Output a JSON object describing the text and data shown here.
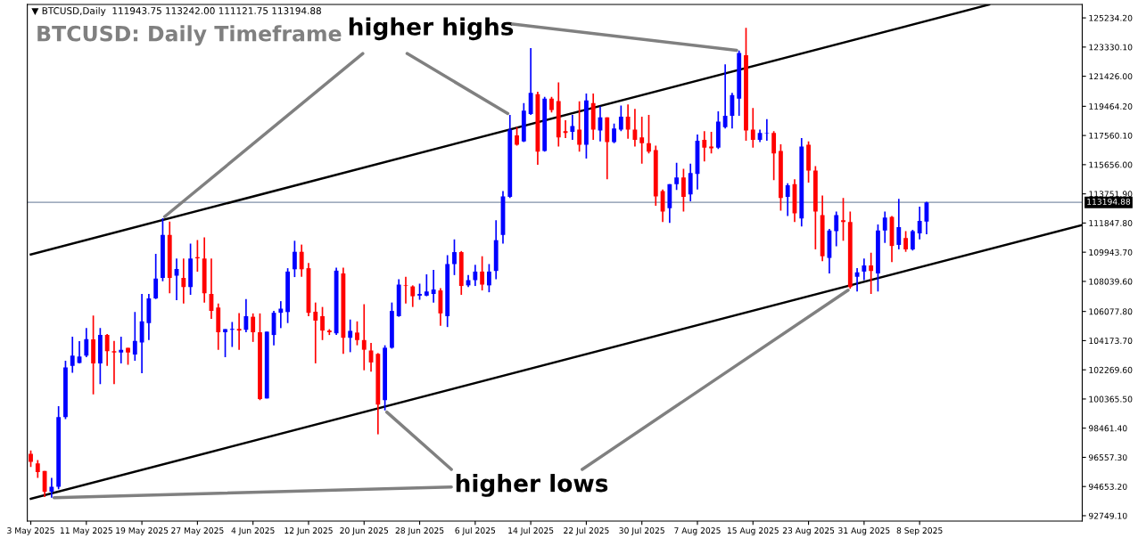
{
  "chart_data": {
    "type": "candlestick",
    "title": "BTCUSD: Daily Timeframe",
    "subtitle": "▼ BTCUSD,Daily  111943.75 113242.00 111121.75 113194.88",
    "annotations": [
      {
        "text": "higher highs",
        "x": "2025-05-22",
        "y": 112160
      },
      {
        "text": "higher lows",
        "x": "2025-05-06",
        "y": 93920
      }
    ],
    "x": [
      "2025-05-03",
      "2025-05-04",
      "2025-05-05",
      "2025-05-06",
      "2025-05-07",
      "2025-05-08",
      "2025-05-09",
      "2025-05-10",
      "2025-05-11",
      "2025-05-12",
      "2025-05-13",
      "2025-05-14",
      "2025-05-15",
      "2025-05-16",
      "2025-05-17",
      "2025-05-18",
      "2025-05-19",
      "2025-05-20",
      "2025-05-21",
      "2025-05-22",
      "2025-05-23",
      "2025-05-24",
      "2025-05-25",
      "2025-05-26",
      "2025-05-27",
      "2025-05-28",
      "2025-05-29",
      "2025-05-30",
      "2025-05-31",
      "2025-06-01",
      "2025-06-02",
      "2025-06-03",
      "2025-06-04",
      "2025-06-05",
      "2025-06-06",
      "2025-06-07",
      "2025-06-08",
      "2025-06-09",
      "2025-06-10",
      "2025-06-11",
      "2025-06-12",
      "2025-06-13",
      "2025-06-14",
      "2025-06-15",
      "2025-06-16",
      "2025-06-17",
      "2025-06-18",
      "2025-06-19",
      "2025-06-20",
      "2025-06-21",
      "2025-06-22",
      "2025-06-23",
      "2025-06-24",
      "2025-06-25",
      "2025-06-26",
      "2025-06-27",
      "2025-06-28",
      "2025-06-29",
      "2025-06-30",
      "2025-07-01",
      "2025-07-02",
      "2025-07-03",
      "2025-07-04",
      "2025-07-05",
      "2025-07-06",
      "2025-07-07",
      "2025-07-08",
      "2025-07-09",
      "2025-07-10",
      "2025-07-11",
      "2025-07-12",
      "2025-07-13",
      "2025-07-14",
      "2025-07-15",
      "2025-07-16",
      "2025-07-17",
      "2025-07-18",
      "2025-07-19",
      "2025-07-20",
      "2025-07-21",
      "2025-07-22",
      "2025-07-23",
      "2025-07-24",
      "2025-07-25",
      "2025-07-26",
      "2025-07-27",
      "2025-07-28",
      "2025-07-29",
      "2025-07-30",
      "2025-07-31",
      "2025-08-01",
      "2025-08-02",
      "2025-08-03",
      "2025-08-04",
      "2025-08-05",
      "2025-08-06",
      "2025-08-07",
      "2025-08-08",
      "2025-08-09",
      "2025-08-10",
      "2025-08-11",
      "2025-08-12",
      "2025-08-13",
      "2025-08-14",
      "2025-08-15",
      "2025-08-16",
      "2025-08-17",
      "2025-08-18",
      "2025-08-19",
      "2025-08-20",
      "2025-08-21",
      "2025-08-22",
      "2025-08-23",
      "2025-08-24",
      "2025-08-25",
      "2025-08-26",
      "2025-08-27",
      "2025-08-28",
      "2025-08-29",
      "2025-08-30",
      "2025-08-31",
      "2025-09-01",
      "2025-09-02",
      "2025-09-03",
      "2025-09-04",
      "2025-09-05",
      "2025-09-06",
      "2025-09-07",
      "2025-09-08",
      "2025-09-09"
    ],
    "ohlc": [
      [
        96780,
        97010,
        95930,
        96270
      ],
      [
        96160,
        96380,
        95220,
        95600
      ],
      [
        95670,
        95670,
        93970,
        94320
      ],
      [
        94320,
        95220,
        93920,
        94640
      ],
      [
        94640,
        99890,
        94480,
        99180
      ],
      [
        99180,
        102860,
        99060,
        102420
      ],
      [
        102530,
        104430,
        102080,
        103200
      ],
      [
        102710,
        104140,
        102680,
        103130
      ],
      [
        103200,
        104990,
        103090,
        104270
      ],
      [
        104250,
        105810,
        100670,
        102690
      ],
      [
        102690,
        104990,
        101340,
        104540
      ],
      [
        104540,
        104610,
        102530,
        103490
      ],
      [
        103490,
        104160,
        101340,
        103400
      ],
      [
        103400,
        104430,
        102690,
        103580
      ],
      [
        103710,
        103710,
        102600,
        103400
      ],
      [
        103270,
        106040,
        102860,
        104160
      ],
      [
        104050,
        107220,
        102040,
        105430
      ],
      [
        105320,
        107220,
        104210,
        106930
      ],
      [
        106930,
        109840,
        106890,
        108230
      ],
      [
        108270,
        112160,
        108050,
        111070
      ],
      [
        111070,
        111940,
        107270,
        108270
      ],
      [
        108410,
        109530,
        106820,
        108850
      ],
      [
        108270,
        109530,
        106600,
        107670
      ],
      [
        107670,
        110510,
        107160,
        109530
      ],
      [
        109620,
        110730,
        108680,
        109550
      ],
      [
        109530,
        110910,
        106660,
        107270
      ],
      [
        107220,
        109530,
        105590,
        106110
      ],
      [
        106330,
        106600,
        103580,
        104720
      ],
      [
        104720,
        104920,
        103090,
        104920
      ],
      [
        104880,
        105390,
        103760,
        104940
      ],
      [
        104940,
        105970,
        103580,
        104830
      ],
      [
        104880,
        106890,
        104720,
        105770
      ],
      [
        105730,
        105950,
        104090,
        104720
      ],
      [
        104720,
        105950,
        100290,
        100360
      ],
      [
        100400,
        104760,
        100400,
        104760
      ],
      [
        104540,
        106110,
        103870,
        105990
      ],
      [
        105990,
        106750,
        104990,
        106260
      ],
      [
        106040,
        108900,
        105320,
        108680
      ],
      [
        108830,
        110690,
        108320,
        109970
      ],
      [
        109970,
        110440,
        108340,
        108830
      ],
      [
        108900,
        109240,
        105770,
        105990
      ],
      [
        106060,
        106660,
        102690,
        105480
      ],
      [
        105770,
        106370,
        104210,
        104830
      ],
      [
        104830,
        104920,
        104540,
        104720
      ],
      [
        104650,
        108940,
        104540,
        108740
      ],
      [
        108560,
        108940,
        103310,
        104360
      ],
      [
        104360,
        105550,
        103420,
        104810
      ],
      [
        104700,
        105430,
        103870,
        104210
      ],
      [
        104210,
        106550,
        102240,
        103580
      ],
      [
        103530,
        104030,
        102150,
        102750
      ],
      [
        103310,
        103360,
        98060,
        100000
      ],
      [
        100290,
        103870,
        99620,
        103710
      ],
      [
        103710,
        106660,
        103650,
        106110
      ],
      [
        105770,
        108180,
        105730,
        107830
      ],
      [
        107780,
        108340,
        106600,
        107740
      ],
      [
        107710,
        107780,
        106370,
        107070
      ],
      [
        107110,
        107890,
        106840,
        107220
      ],
      [
        107110,
        108500,
        107070,
        107380
      ],
      [
        107220,
        108790,
        106660,
        107510
      ],
      [
        107450,
        107600,
        105140,
        105950
      ],
      [
        105770,
        109750,
        105060,
        109170
      ],
      [
        109170,
        110780,
        108450,
        109950
      ],
      [
        109950,
        110020,
        107160,
        107740
      ],
      [
        107780,
        108450,
        107670,
        108120
      ],
      [
        108120,
        109120,
        107740,
        108680
      ],
      [
        108680,
        109680,
        107450,
        107830
      ],
      [
        107780,
        109170,
        107330,
        108680
      ],
      [
        108720,
        112030,
        108180,
        110730
      ],
      [
        111070,
        113930,
        110510,
        113590
      ],
      [
        113550,
        118910,
        113480,
        117950
      ],
      [
        117570,
        118110,
        116900,
        116950
      ],
      [
        117170,
        119670,
        117130,
        119180
      ],
      [
        118960,
        123260,
        118910,
        120340
      ],
      [
        120260,
        120410,
        115650,
        116500
      ],
      [
        116550,
        120080,
        116500,
        119970
      ],
      [
        119970,
        120080,
        119070,
        119230
      ],
      [
        119810,
        121020,
        116840,
        117440
      ],
      [
        117840,
        118560,
        117390,
        117730
      ],
      [
        117800,
        118910,
        117280,
        118180
      ],
      [
        117950,
        119790,
        116500,
        116950
      ],
      [
        116950,
        120300,
        116050,
        119850
      ],
      [
        119670,
        120300,
        117280,
        117950
      ],
      [
        117890,
        119450,
        117170,
        118740
      ],
      [
        118740,
        118740,
        114710,
        117130
      ],
      [
        117130,
        118330,
        117060,
        118020
      ],
      [
        117950,
        119520,
        117840,
        118780
      ],
      [
        118780,
        119590,
        117350,
        117950
      ],
      [
        117950,
        119290,
        116840,
        117280
      ],
      [
        117440,
        118780,
        115720,
        117060
      ],
      [
        117060,
        118910,
        116390,
        116500
      ],
      [
        116610,
        116900,
        112970,
        113590
      ],
      [
        113930,
        114040,
        111920,
        112590
      ],
      [
        112810,
        114380,
        111850,
        114380
      ],
      [
        114380,
        115780,
        114000,
        114820
      ],
      [
        114820,
        115380,
        112590,
        113550
      ],
      [
        113710,
        115720,
        113260,
        115110
      ],
      [
        115050,
        117620,
        114040,
        117220
      ],
      [
        117280,
        117840,
        115870,
        116770
      ],
      [
        116840,
        117800,
        116390,
        116720
      ],
      [
        116770,
        119140,
        116680,
        118470
      ],
      [
        118110,
        122200,
        118020,
        118850
      ],
      [
        118850,
        120340,
        118020,
        120190
      ],
      [
        119970,
        123100,
        118850,
        122940
      ],
      [
        122800,
        124590,
        117220,
        117890
      ],
      [
        117950,
        119360,
        116770,
        117280
      ],
      [
        117280,
        117950,
        117130,
        117730
      ],
      [
        117690,
        118620,
        117220,
        117730
      ],
      [
        117730,
        117840,
        114640,
        116390
      ],
      [
        116550,
        116990,
        112660,
        113480
      ],
      [
        113550,
        114440,
        112300,
        114310
      ],
      [
        114380,
        114710,
        111920,
        112480
      ],
      [
        112140,
        117390,
        111630,
        116840
      ],
      [
        116950,
        117170,
        114490,
        115270
      ],
      [
        115270,
        115560,
        110130,
        112590
      ],
      [
        112370,
        113640,
        109350,
        109680
      ],
      [
        109570,
        111470,
        108560,
        111360
      ],
      [
        111320,
        112590,
        110330,
        112370
      ],
      [
        112030,
        113480,
        110690,
        111920
      ],
      [
        111920,
        112590,
        107560,
        107670
      ],
      [
        108340,
        108900,
        107380,
        108630
      ],
      [
        108680,
        109530,
        108120,
        109080
      ],
      [
        109080,
        109910,
        107220,
        108720
      ],
      [
        108560,
        111760,
        107380,
        111360
      ],
      [
        111360,
        112590,
        110550,
        112210
      ],
      [
        112250,
        112300,
        109300,
        110350
      ],
      [
        110420,
        113420,
        110130,
        111580
      ],
      [
        110870,
        111320,
        109970,
        110130
      ],
      [
        110130,
        111400,
        110060,
        111320
      ],
      [
        111180,
        112920,
        110780,
        111990
      ],
      [
        111943.75,
        113242.0,
        111121.75,
        113194.88
      ]
    ],
    "colors": [
      "#ff0000",
      "#ff0000",
      "#ff0000",
      "#0000ff",
      "#0000ff",
      "#0000ff",
      "#0000ff",
      "#0000ff",
      "#0000ff",
      "#ff0000",
      "#0000ff",
      "#ff0000",
      "#ff0000",
      "#0000ff",
      "#ff0000",
      "#0000ff",
      "#0000ff",
      "#0000ff",
      "#0000ff",
      "#0000ff",
      "#ff0000",
      "#0000ff",
      "#ff0000",
      "#0000ff",
      "#ff0000",
      "#ff0000",
      "#ff0000",
      "#ff0000",
      "#0000ff",
      "#0000ff",
      "#ff0000",
      "#0000ff",
      "#ff0000",
      "#ff0000",
      "#0000ff",
      "#0000ff",
      "#0000ff",
      "#0000ff",
      "#0000ff",
      "#ff0000",
      "#ff0000",
      "#ff0000",
      "#ff0000",
      "#ff0000",
      "#0000ff",
      "#ff0000",
      "#0000ff",
      "#ff0000",
      "#ff0000",
      "#ff0000",
      "#ff0000",
      "#0000ff",
      "#0000ff",
      "#0000ff",
      "#ff0000",
      "#ff0000",
      "#0000ff",
      "#0000ff",
      "#0000ff",
      "#ff0000",
      "#0000ff",
      "#0000ff",
      "#ff0000",
      "#0000ff",
      "#0000ff",
      "#ff0000",
      "#0000ff",
      "#0000ff",
      "#0000ff",
      "#0000ff",
      "#ff0000",
      "#0000ff",
      "#0000ff",
      "#ff0000",
      "#0000ff",
      "#ff0000",
      "#ff0000",
      "#ff0000",
      "#0000ff",
      "#ff0000",
      "#0000ff",
      "#ff0000",
      "#0000ff",
      "#ff0000",
      "#0000ff",
      "#0000ff",
      "#ff0000",
      "#ff0000",
      "#ff0000",
      "#ff0000",
      "#ff0000",
      "#ff0000",
      "#0000ff",
      "#0000ff",
      "#ff0000",
      "#0000ff",
      "#0000ff",
      "#ff0000",
      "#ff0000",
      "#0000ff",
      "#0000ff",
      "#0000ff",
      "#0000ff",
      "#ff0000",
      "#ff0000",
      "#0000ff",
      "#0000ff",
      "#ff0000",
      "#ff0000",
      "#0000ff",
      "#ff0000",
      "#0000ff",
      "#ff0000",
      "#ff0000",
      "#ff0000",
      "#0000ff",
      "#0000ff",
      "#ff0000",
      "#ff0000",
      "#0000ff",
      "#0000ff",
      "#ff0000",
      "#0000ff",
      "#0000ff",
      "#ff0000",
      "#0000ff",
      "#ff0000",
      "#0000ff",
      "#0000ff",
      "#0000ff"
    ],
    "series": [
      {
        "type": "line",
        "color": "#000000",
        "x": [
          "2025-05-03",
          "2025-09-18"
        ],
        "values": [
          109800,
          126100
        ]
      },
      {
        "type": "line",
        "color": "#000000",
        "x": [
          "2025-05-03",
          "2025-10-01T10:00"
        ],
        "values": [
          93850,
          111720
        ]
      }
    ],
    "ref_lines": [
      {
        "axis": "y",
        "value": 113194.88,
        "label": "113194.88",
        "color": "#8090a8"
      }
    ],
    "xlim": [
      "2025-05-02T12:00",
      "2025-10-01T10:00"
    ],
    "xticks": [
      {
        "value": "2025-05-03",
        "label": "3 May 2025"
      },
      {
        "value": "2025-05-11",
        "label": "11 May 2025"
      },
      {
        "value": "2025-05-19",
        "label": "19 May 2025"
      },
      {
        "value": "2025-05-27",
        "label": "27 May 2025"
      },
      {
        "value": "2025-06-04",
        "label": "4 Jun 2025"
      },
      {
        "value": "2025-06-12",
        "label": "12 Jun 2025"
      },
      {
        "value": "2025-06-20",
        "label": "20 Jun 2025"
      },
      {
        "value": "2025-06-28",
        "label": "28 Jun 2025"
      },
      {
        "value": "2025-07-06",
        "label": "6 Jul 2025"
      },
      {
        "value": "2025-07-14",
        "label": "14 Jul 2025"
      },
      {
        "value": "2025-07-22",
        "label": "22 Jul 2025"
      },
      {
        "value": "2025-07-30",
        "label": "30 Jul 2025"
      },
      {
        "value": "2025-08-07",
        "label": "7 Aug 2025"
      },
      {
        "value": "2025-08-15",
        "label": "15 Aug 2025"
      },
      {
        "value": "2025-08-23",
        "label": "23 Aug 2025"
      },
      {
        "value": "2025-08-31",
        "label": "31 Aug 2025"
      },
      {
        "value": "2025-09-08",
        "label": "8 Sep 2025"
      }
    ],
    "ylim": [
      92400,
      126110
    ],
    "yticks": [
      {
        "value": 92749.1,
        "label": "92749.10"
      },
      {
        "value": 94653.2,
        "label": "94653.20"
      },
      {
        "value": 96557.3,
        "label": "96557.30"
      },
      {
        "value": 98461.4,
        "label": "98461.40"
      },
      {
        "value": 100365.5,
        "label": "100365.50"
      },
      {
        "value": 102269.6,
        "label": "102269.60"
      },
      {
        "value": 104173.7,
        "label": "104173.70"
      },
      {
        "value": 106077.8,
        "label": "106077.80"
      },
      {
        "value": 108039.6,
        "label": "108039.60"
      },
      {
        "value": 109943.7,
        "label": "109943.70"
      },
      {
        "value": 111847.8,
        "label": "111847.80"
      },
      {
        "value": 113751.9,
        "label": "113751.90"
      },
      {
        "value": 115656.0,
        "label": "115656.00"
      },
      {
        "value": 117560.1,
        "label": "117560.10"
      },
      {
        "value": 119464.2,
        "label": "119464.20"
      },
      {
        "value": 121426.0,
        "label": "121426.00"
      },
      {
        "value": 123330.1,
        "label": "123330.10"
      },
      {
        "value": 125234.2,
        "label": "125234.20"
      }
    ],
    "grid": false,
    "legend": false
  }
}
